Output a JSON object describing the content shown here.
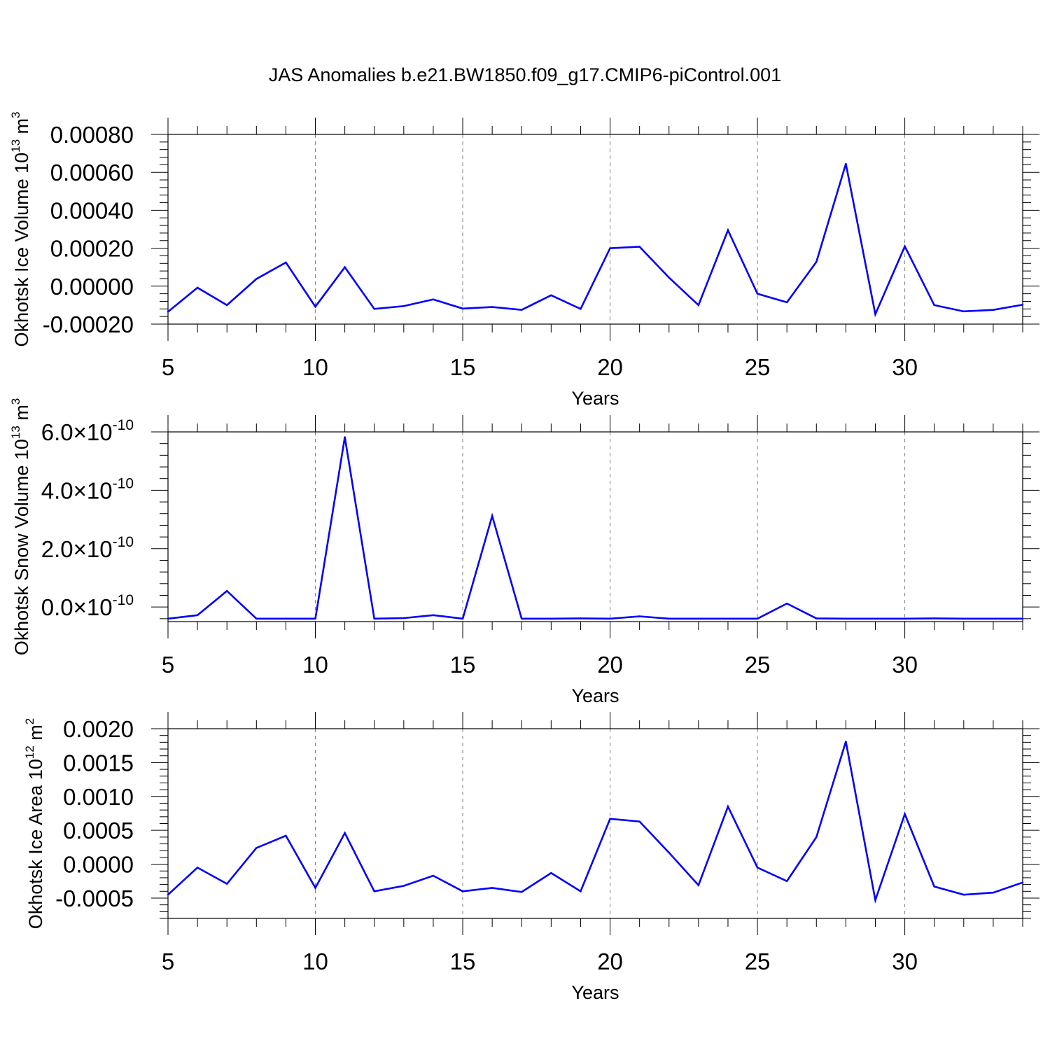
{
  "title": "JAS Anomalies b.e21.BW1850.f09_g17.CMIP6-piControl.001",
  "colors": {
    "line": "#0000ff",
    "axis": "#000000",
    "grid": "#808080",
    "background": "#ffffff"
  },
  "chart_data": [
    {
      "type": "line",
      "xlabel": "Years",
      "ylabel": "Okhotsk Ice Volume 10",
      "ylabel_sup": "13",
      "ylabel_unit": "m",
      "ylabel_unit_sup": "3",
      "xlim": [
        5,
        34
      ],
      "ylim": [
        -0.0002,
        0.0008
      ],
      "x_ticks": [
        5,
        10,
        15,
        20,
        25,
        30
      ],
      "x_tick_labels": [
        "5",
        "10",
        "15",
        "20",
        "25",
        "30"
      ],
      "y_ticks": [
        -0.0002,
        0.0,
        0.0002,
        0.0004,
        0.0006,
        0.0008
      ],
      "y_tick_labels": [
        "-0.00020",
        "0.00000",
        "0.00020",
        "0.00040",
        "0.00060",
        "0.00080"
      ],
      "grid": "vertical dashed at major x ticks",
      "x": [
        5,
        6,
        7,
        8,
        9,
        10,
        11,
        12,
        13,
        14,
        15,
        16,
        17,
        18,
        19,
        20,
        21,
        22,
        23,
        24,
        25,
        26,
        27,
        28,
        29,
        30,
        31,
        32,
        33,
        34
      ],
      "y": [
        -0.000135,
        -8e-06,
        -0.0001,
        3.8e-05,
        0.000125,
        -0.000108,
        0.0001,
        -0.00012,
        -0.000105,
        -7e-05,
        -0.000118,
        -0.00011,
        -0.000125,
        -4.8e-05,
        -0.00012,
        0.0002,
        0.000208,
        4.5e-05,
        -0.0001,
        0.000295,
        -4e-05,
        -8.5e-05,
        0.000128,
        0.000645,
        -0.000148,
        0.00021,
        -0.0001,
        -0.000133,
        -0.000125,
        -9.8e-05
      ]
    },
    {
      "type": "line",
      "xlabel": "Years",
      "ylabel": "Okhotsk Snow Volume 10",
      "ylabel_sup": "13",
      "ylabel_unit": "m",
      "ylabel_unit_sup": "3",
      "xlim": [
        5,
        34
      ],
      "ylim": [
        -5e-11,
        6e-10
      ],
      "x_ticks": [
        5,
        10,
        15,
        20,
        25,
        30
      ],
      "x_tick_labels": [
        "5",
        "10",
        "15",
        "20",
        "25",
        "30"
      ],
      "y_ticks": [
        0.0,
        2e-10,
        4e-10,
        6e-10
      ],
      "y_tick_mantissas": [
        "0.0",
        "2.0",
        "4.0",
        "6.0"
      ],
      "y_tick_exponent": "-10",
      "grid": "vertical dashed at major x ticks",
      "x": [
        5,
        6,
        7,
        8,
        9,
        10,
        11,
        12,
        13,
        14,
        15,
        16,
        17,
        18,
        19,
        20,
        21,
        22,
        23,
        24,
        25,
        26,
        27,
        28,
        29,
        30,
        31,
        32,
        33,
        34
      ],
      "y": [
        -4e-11,
        -2.8e-11,
        5.5e-11,
        -4e-11,
        -4e-11,
        -4e-11,
        5.82e-10,
        -4e-11,
        -3.8e-11,
        -2.8e-11,
        -4e-11,
        3.12e-10,
        -4e-11,
        -4e-11,
        -3.9e-11,
        -4e-11,
        -3.2e-11,
        -4e-11,
        -4e-11,
        -4e-11,
        -4e-11,
        1.2e-11,
        -3.9e-11,
        -4e-11,
        -4e-11,
        -4e-11,
        -3.9e-11,
        -4e-11,
        -4e-11,
        -4e-11
      ]
    },
    {
      "type": "line",
      "xlabel": "Years",
      "ylabel": "Okhotsk Ice Area 10",
      "ylabel_sup": "12",
      "ylabel_unit": "m",
      "ylabel_unit_sup": "2",
      "xlim": [
        5,
        34
      ],
      "ylim": [
        -0.0008,
        0.002
      ],
      "x_ticks": [
        5,
        10,
        15,
        20,
        25,
        30
      ],
      "x_tick_labels": [
        "5",
        "10",
        "15",
        "20",
        "25",
        "30"
      ],
      "y_ticks": [
        -0.0005,
        0.0,
        0.0005,
        0.001,
        0.0015,
        0.002
      ],
      "y_tick_labels": [
        "-0.0005",
        "0.0000",
        "0.0005",
        "0.0010",
        "0.0015",
        "0.0020"
      ],
      "grid": "vertical dashed at major x ticks",
      "x": [
        5,
        6,
        7,
        8,
        9,
        10,
        11,
        12,
        13,
        14,
        15,
        16,
        17,
        18,
        19,
        20,
        21,
        22,
        23,
        24,
        25,
        26,
        27,
        28,
        29,
        30,
        31,
        32,
        33,
        34
      ],
      "y": [
        -0.00045,
        -5e-05,
        -0.00029,
        0.00024,
        0.00042,
        -0.00035,
        0.00046,
        -0.0004,
        -0.00032,
        -0.00017,
        -0.0004,
        -0.00035,
        -0.00041,
        -0.00013,
        -0.0004,
        0.00067,
        0.00063,
        0.00017,
        -0.00031,
        0.00085,
        -5e-05,
        -0.00025,
        0.0004,
        0.00181,
        -0.00053,
        0.00074,
        -0.00033,
        -0.00045,
        -0.00042,
        -0.00027
      ]
    }
  ]
}
